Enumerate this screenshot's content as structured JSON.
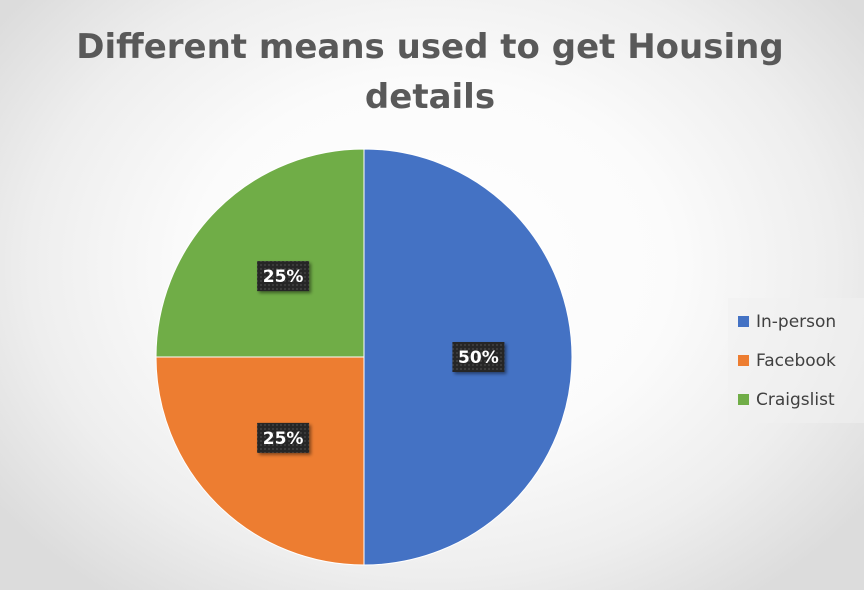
{
  "chart_data": {
    "type": "pie",
    "title": "Different means used to get Housing details",
    "categories": [
      "In-person",
      "Facebook",
      "Craigslist"
    ],
    "values": [
      50,
      25,
      25
    ],
    "labels": [
      "50%",
      "25%",
      "25%"
    ],
    "colors": [
      "#4472C4",
      "#ED7D31",
      "#70AD47"
    ],
    "legend_position": "right"
  }
}
